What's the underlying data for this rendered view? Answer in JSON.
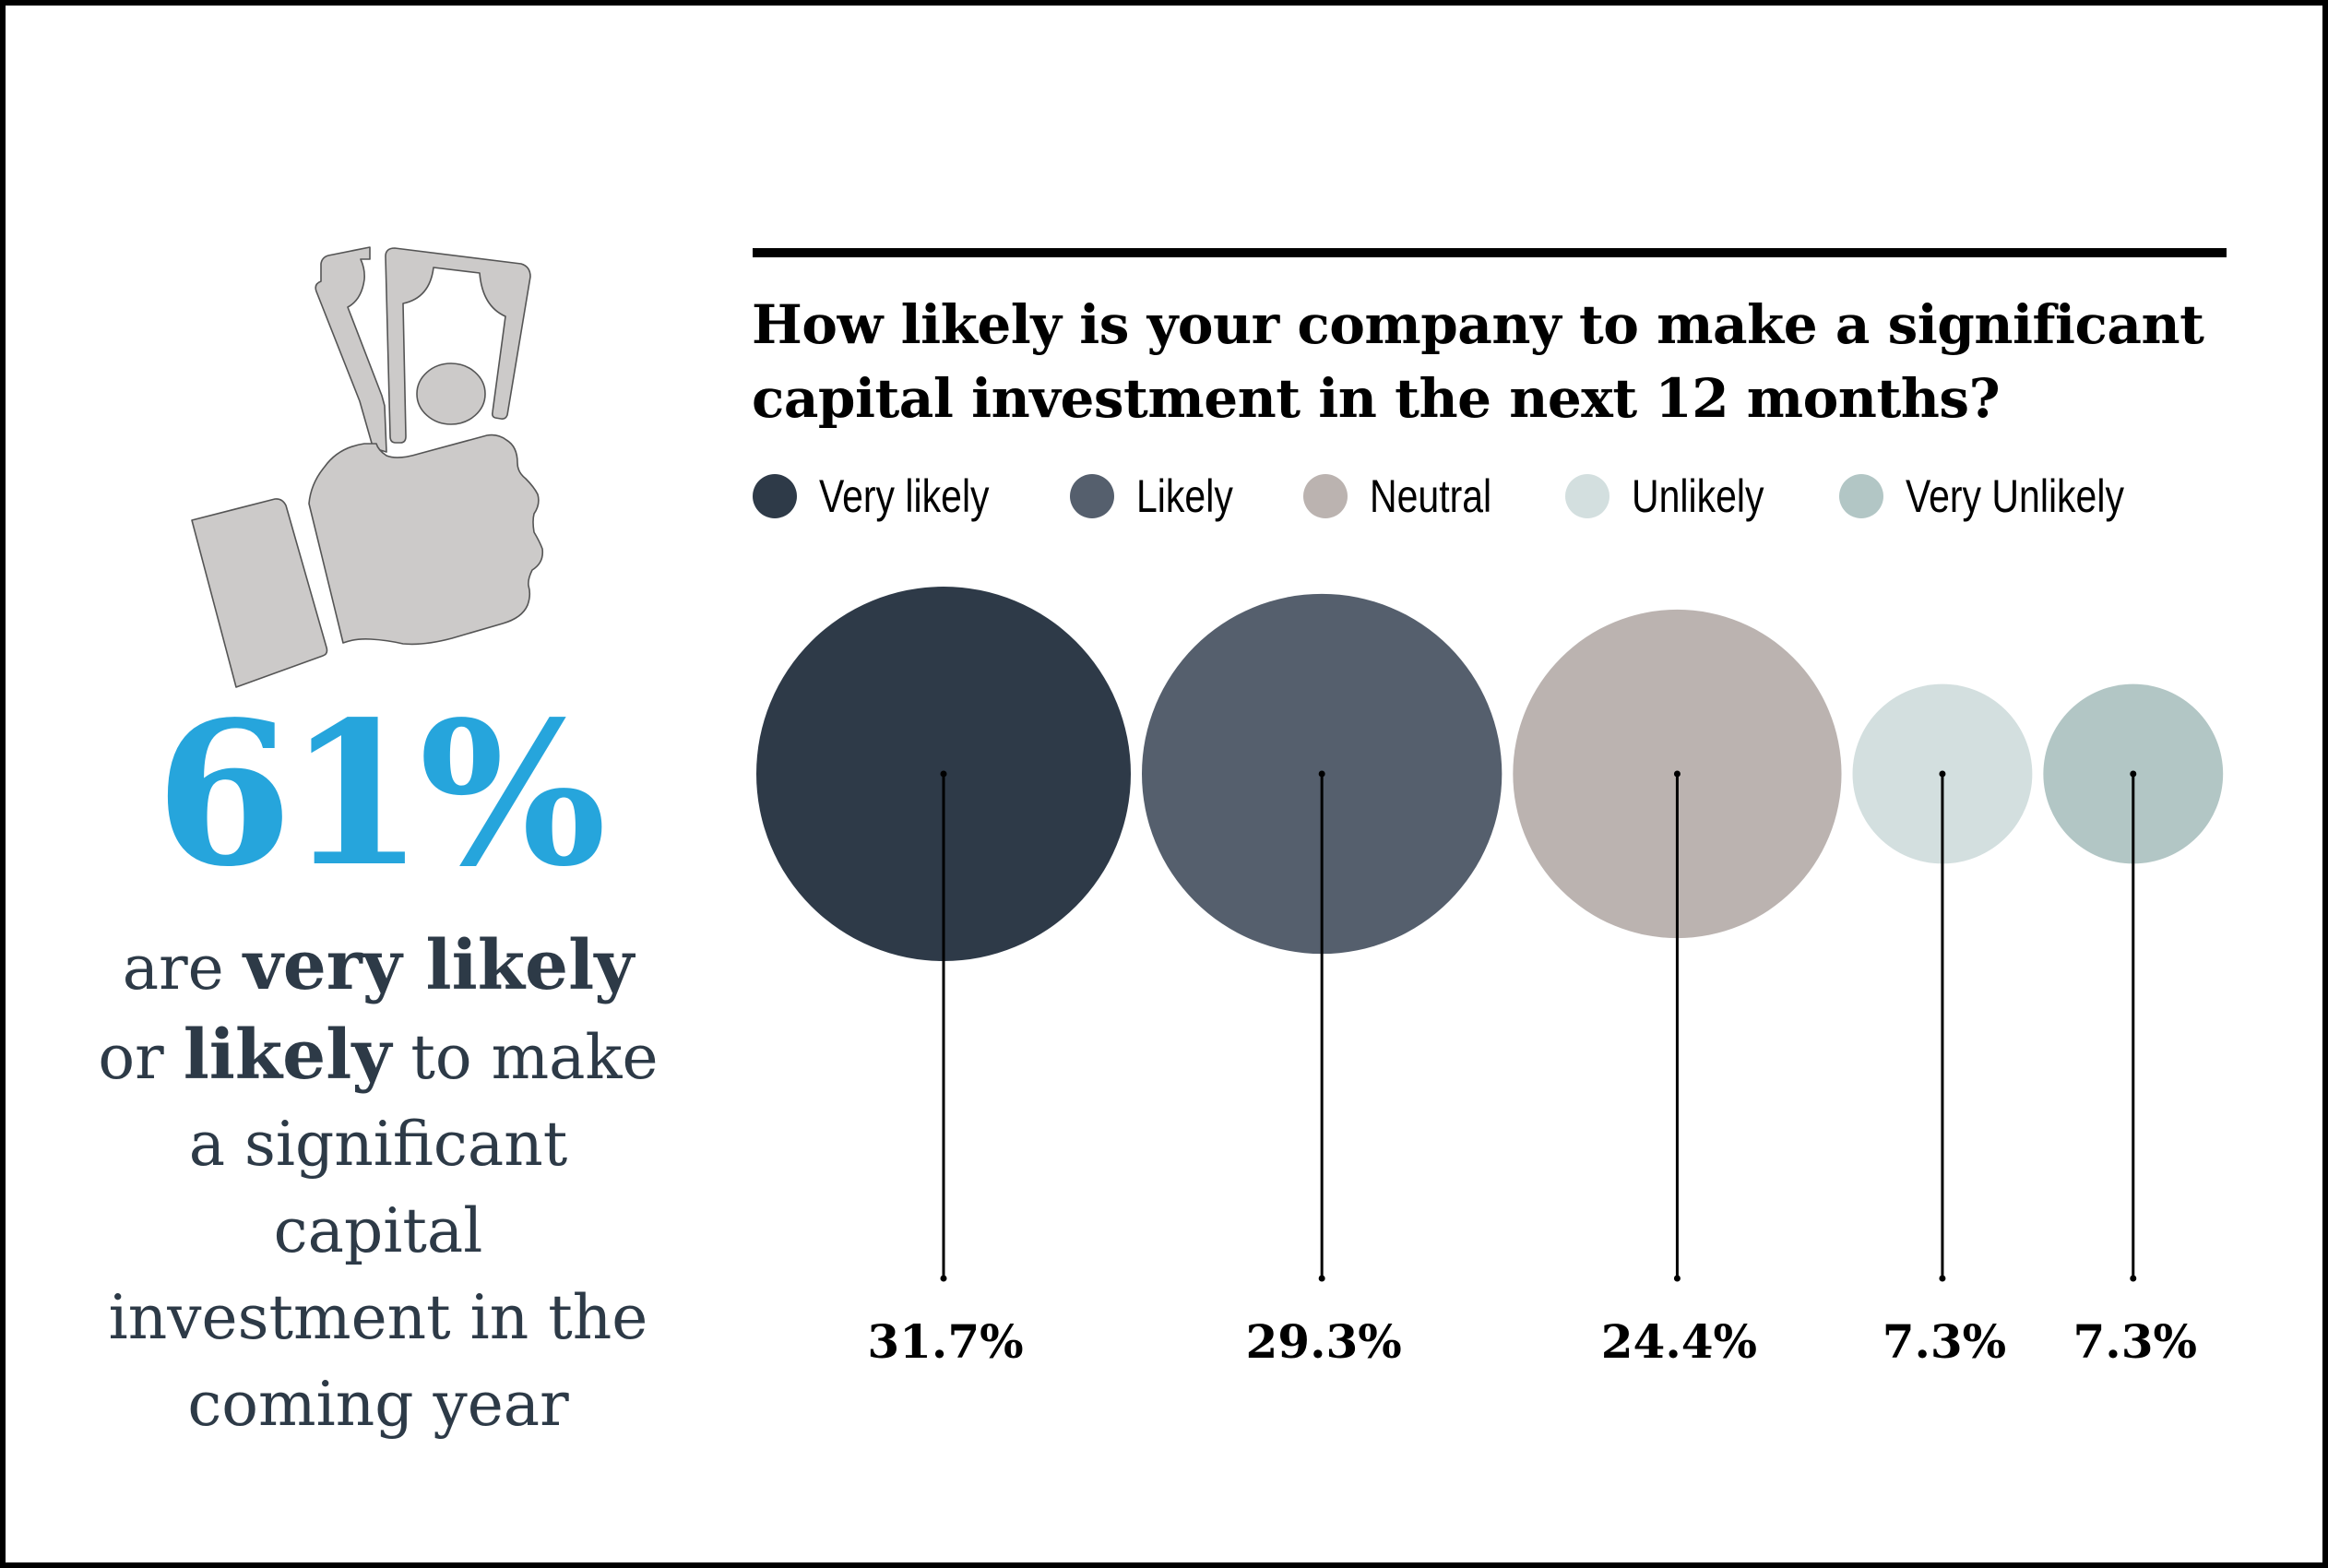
{
  "left_panel": {
    "icon": "hand-holding-money-icon",
    "big_stat": "61%",
    "big_stat_color": "#26a5dc",
    "caption": {
      "part1": "are ",
      "bold1": "very likely",
      "part2": " or ",
      "bold2": "likely",
      "part3": " to make a significant capital investment in the coming year"
    },
    "caption_lines": [
      [
        "are ",
        "very likely"
      ],
      [
        "or ",
        "likely",
        " to make"
      ],
      [
        "a significant"
      ],
      [
        "capital"
      ],
      [
        "investment in the"
      ],
      [
        "coming year"
      ]
    ]
  },
  "chart_data": {
    "type": "bubble",
    "title": "How likely is your company to make a significant capital investment in the next 12 months?",
    "title_lines": [
      "How likely is your company to make a significant",
      "capital investment in the next 12 months?"
    ],
    "categories": [
      "Very likely",
      "Likely",
      "Neutral",
      "Unlikely",
      "Very Unlikely"
    ],
    "values": [
      31.7,
      29.3,
      24.4,
      7.3,
      7.3
    ],
    "value_labels": [
      "31.7%",
      "29.3%",
      "24.4%",
      "7.3%",
      "7.3%"
    ],
    "unit": "%",
    "colors": [
      "#2e3a48",
      "#555f6d",
      "#bbb3b0",
      "#d3dfdf",
      "#b2c6c5"
    ],
    "legend_position": "top",
    "grid": false
  }
}
